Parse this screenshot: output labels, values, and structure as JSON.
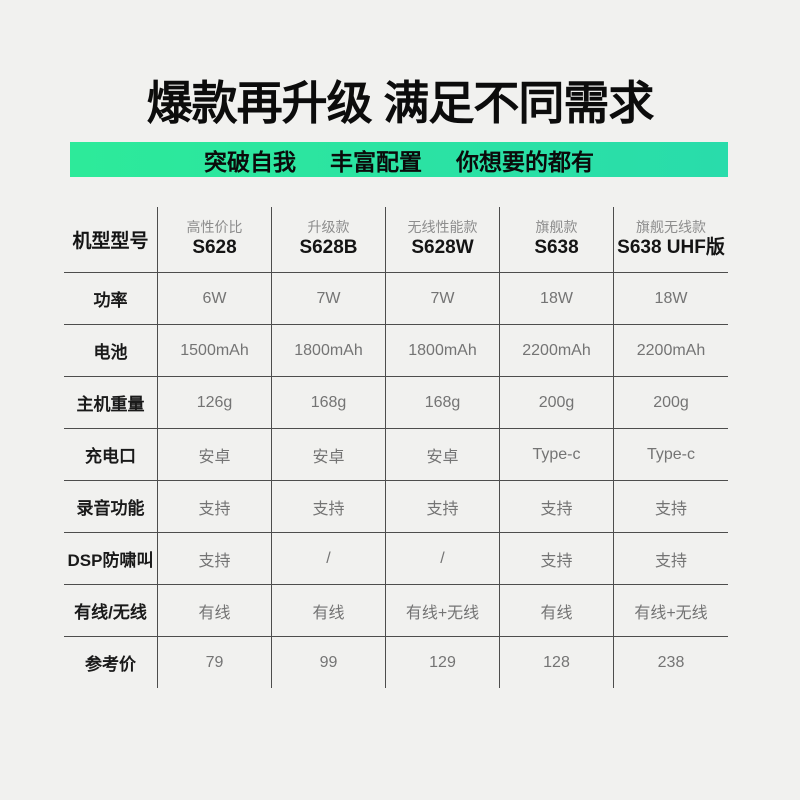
{
  "page": {
    "title": "爆款再升级 满足不同需求",
    "banner": {
      "items": [
        "突破自我",
        "丰富配置",
        "你想要的都有"
      ],
      "bg_left": "#2dea9a",
      "bg_right": "#29dcab"
    },
    "background_color": "#f1f1ef",
    "line_color": "#4d4d4d"
  },
  "table": {
    "corner_label": "机型型号",
    "columns": [
      {
        "tier": "高性价比",
        "model": "S628"
      },
      {
        "tier": "升级款",
        "model": "S628B"
      },
      {
        "tier": "无线性能款",
        "model": "S628W"
      },
      {
        "tier": "旗舰款",
        "model": "S638"
      },
      {
        "tier": "旗舰无线款",
        "model": "S638 UHF版"
      }
    ],
    "rows": [
      {
        "label": "功率",
        "values": [
          "6W",
          "7W",
          "7W",
          "18W",
          "18W"
        ]
      },
      {
        "label": "电池",
        "values": [
          "1500mAh",
          "1800mAh",
          "1800mAh",
          "2200mAh",
          "2200mAh"
        ]
      },
      {
        "label": "主机重量",
        "values": [
          "126g",
          "168g",
          "168g",
          "200g",
          "200g"
        ]
      },
      {
        "label": "充电口",
        "values": [
          "安卓",
          "安卓",
          "安卓",
          "Type-c",
          "Type-c"
        ]
      },
      {
        "label": "录音功能",
        "values": [
          "支持",
          "支持",
          "支持",
          "支持",
          "支持"
        ]
      },
      {
        "label": "DSP防啸叫",
        "values": [
          "支持",
          "/",
          "/",
          "支持",
          "支持"
        ]
      },
      {
        "label": "有线/无线",
        "values": [
          "有线",
          "有线",
          "有线+无线",
          "有线",
          "有线+无线"
        ]
      },
      {
        "label": "参考价",
        "values": [
          "79",
          "99",
          "129",
          "128",
          "238"
        ]
      }
    ]
  }
}
